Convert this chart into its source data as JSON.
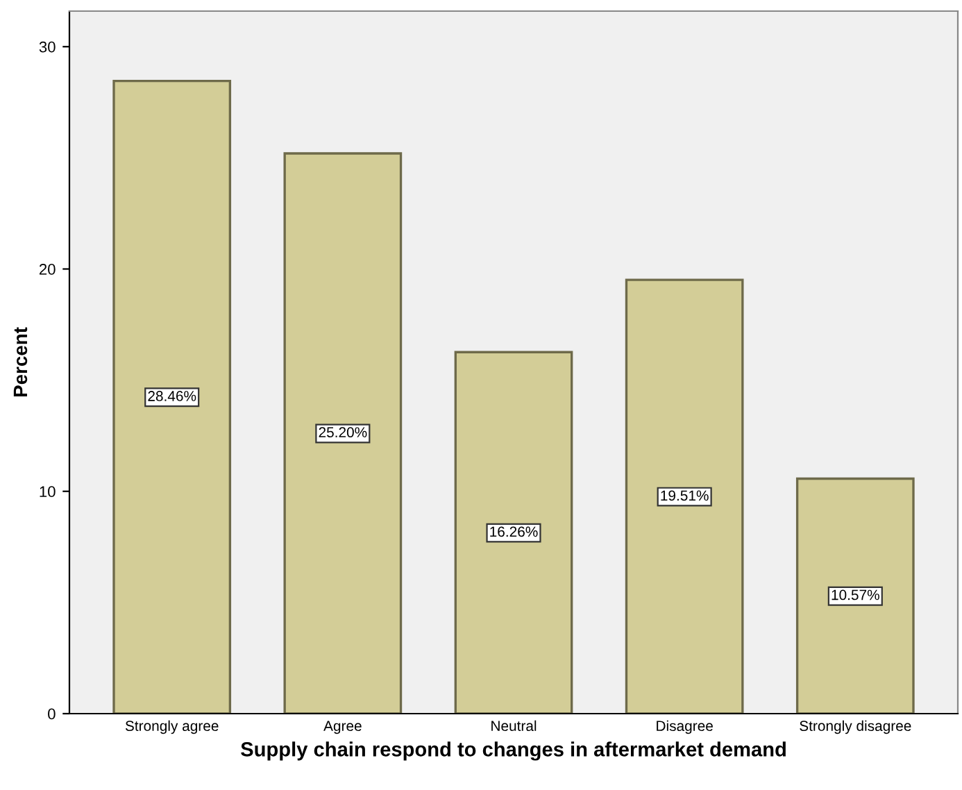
{
  "chart_data": {
    "type": "bar",
    "xlabel": "Supply chain respond to changes in aftermarket demand",
    "ylabel": "Percent",
    "categories": [
      "Strongly agree",
      "Agree",
      "Neutral",
      "Disagree",
      "Strongly disagree"
    ],
    "values": [
      28.46,
      25.2,
      16.26,
      19.51,
      10.57
    ],
    "value_labels": [
      "28.46%",
      "25.20%",
      "16.26%",
      "19.51%",
      "10.57%"
    ],
    "color": "#d3cd97",
    "ylim": [
      0,
      31.6
    ],
    "yticks": [
      0,
      10,
      20,
      30
    ],
    "grid": false
  }
}
